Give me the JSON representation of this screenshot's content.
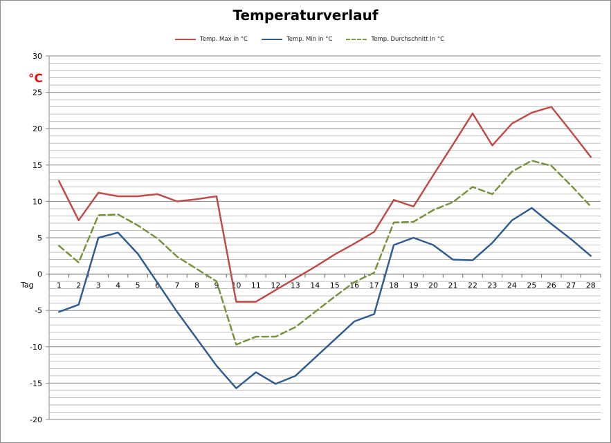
{
  "chart_data": {
    "type": "line",
    "title": "Temperaturverlauf",
    "ylabel": "°C",
    "xlabel": "Tag",
    "ylim": [
      -20,
      30
    ],
    "yticks": [
      30,
      25,
      20,
      15,
      10,
      5,
      0,
      -5,
      -10,
      -15,
      -20
    ],
    "grid": true,
    "legend": "top",
    "x": [
      1,
      2,
      3,
      4,
      5,
      6,
      7,
      8,
      9,
      10,
      11,
      12,
      13,
      14,
      15,
      16,
      17,
      18,
      19,
      20,
      21,
      22,
      23,
      24,
      25,
      26,
      27,
      28
    ],
    "series": [
      {
        "name": "Temp. Max in °C",
        "color": "#be4b48",
        "style": "solid",
        "values": [
          12.8,
          7.4,
          11.2,
          10.7,
          10.7,
          11.0,
          10.0,
          10.3,
          10.7,
          -3.8,
          -3.8,
          -2.2,
          -0.6,
          1.0,
          2.7,
          4.2,
          5.8,
          10.2,
          9.3,
          13.6,
          17.8,
          22.1,
          17.7,
          20.7,
          22.2,
          23.0,
          19.6,
          16.1
        ]
      },
      {
        "name": "Temp. Min in °C",
        "color": "#2f5c8f",
        "style": "solid",
        "values": [
          -5.2,
          -4.2,
          5.0,
          5.7,
          2.8,
          -1.2,
          -5.2,
          -8.9,
          -12.6,
          -15.7,
          -13.5,
          -15.1,
          -14.0,
          -11.5,
          -9.0,
          -6.5,
          -5.5,
          4.0,
          5.0,
          4.0,
          2.0,
          1.9,
          4.3,
          7.4,
          9.1,
          6.9,
          4.8,
          2.5
        ]
      },
      {
        "name": "Temp. Durchschnitt in °C",
        "color": "#77933c",
        "style": "dashed",
        "values": [
          3.9,
          1.6,
          8.1,
          8.2,
          6.7,
          4.9,
          2.4,
          0.7,
          -1.0,
          -9.7,
          -8.6,
          -8.6,
          -7.3,
          -5.2,
          -3.1,
          -1.1,
          0.2,
          7.1,
          7.2,
          8.8,
          9.9,
          12.0,
          11.0,
          14.1,
          15.6,
          14.9,
          12.2,
          9.3
        ]
      }
    ]
  }
}
